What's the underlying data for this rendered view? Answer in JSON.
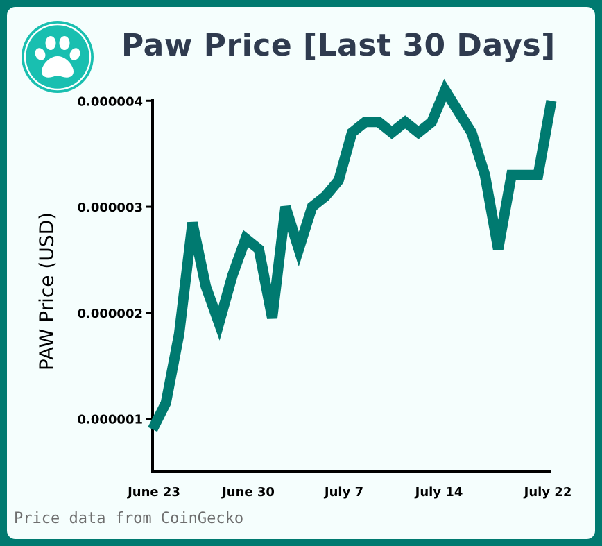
{
  "title": "Paw Price [Last 30 Days]",
  "source_note": "Price data from CoinGecko",
  "logo": {
    "icon": "paw-icon",
    "color": "#19bfb0"
  },
  "colors": {
    "frame": "#007a70",
    "line": "#007a70",
    "title": "#2f3b4f"
  },
  "chart_data": {
    "type": "line",
    "title": "Paw Price [Last 30 Days]",
    "ylabel": "PAW Price (USD)",
    "xlabel": "",
    "y_ticks": [
      {
        "value": 1e-06,
        "label": "0.000001"
      },
      {
        "value": 2e-06,
        "label": "0.000002"
      },
      {
        "value": 3e-06,
        "label": "0.000003"
      },
      {
        "value": 4e-06,
        "label": "0.000004"
      }
    ],
    "x_ticks": [
      "June 23",
      "June 30",
      "July 7",
      "July 14",
      "July 22"
    ],
    "ylim": [
      5e-07,
      4.1e-06
    ],
    "grid": false,
    "legend": "none",
    "series": [
      {
        "values": [
          9e-07,
          1.15e-06,
          1.8e-06,
          2.85e-06,
          2.25e-06,
          1.9e-06,
          2.35e-06,
          2.7e-06,
          2.6e-06,
          1.95e-06,
          3e-06,
          2.6e-06,
          3e-06,
          3.1e-06,
          3.25e-06,
          3.7e-06,
          3.8e-06,
          3.8e-06,
          3.7e-06,
          3.8e-06,
          3.7e-06,
          3.8e-06,
          4.1e-06,
          3.9e-06,
          3.7e-06,
          3.3e-06,
          2.6e-06,
          3.3e-06,
          3.3e-06,
          3.3e-06,
          4e-06
        ]
      }
    ]
  }
}
